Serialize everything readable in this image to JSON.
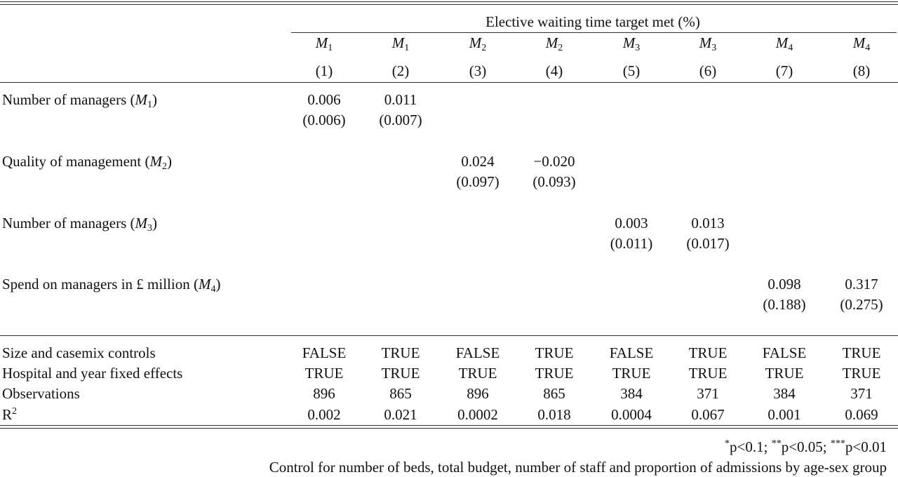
{
  "header": {
    "title": "Elective waiting time target met (%)",
    "models": [
      {
        "letter": "M",
        "sub": "1"
      },
      {
        "letter": "M",
        "sub": "1"
      },
      {
        "letter": "M",
        "sub": "2"
      },
      {
        "letter": "M",
        "sub": "2"
      },
      {
        "letter": "M",
        "sub": "3"
      },
      {
        "letter": "M",
        "sub": "3"
      },
      {
        "letter": "M",
        "sub": "4"
      },
      {
        "letter": "M",
        "sub": "4"
      }
    ],
    "numbers": [
      "(1)",
      "(2)",
      "(3)",
      "(4)",
      "(5)",
      "(6)",
      "(7)",
      "(8)"
    ]
  },
  "coefficients": [
    {
      "label": {
        "before": "Number of managers (",
        "var": "M",
        "sub": "1",
        "after": ")"
      },
      "cells": [
        {
          "estimate": "0.006",
          "se": "(0.006)"
        },
        {
          "estimate": "0.011",
          "se": "(0.007)"
        },
        null,
        null,
        null,
        null,
        null,
        null
      ]
    },
    {
      "label": {
        "before": "Quality of management (",
        "var": "M",
        "sub": "2",
        "after": ")"
      },
      "cells": [
        null,
        null,
        {
          "estimate": "0.024",
          "se": "(0.097)"
        },
        {
          "estimate": "−0.020",
          "se": "(0.093)"
        },
        null,
        null,
        null,
        null
      ]
    },
    {
      "label": {
        "before": "Number of managers (",
        "var": "M",
        "sub": "3",
        "after": ")"
      },
      "cells": [
        null,
        null,
        null,
        null,
        {
          "estimate": "0.003",
          "se": "(0.011)"
        },
        {
          "estimate": "0.013",
          "se": "(0.017)"
        },
        null,
        null
      ]
    },
    {
      "label": {
        "before": "Spend on managers in £ million (",
        "var": "M",
        "sub": "4",
        "after": ")"
      },
      "cells": [
        null,
        null,
        null,
        null,
        null,
        null,
        {
          "estimate": "0.098",
          "se": "(0.188)"
        },
        {
          "estimate": "0.317",
          "se": "(0.275)"
        }
      ]
    }
  ],
  "stats": [
    {
      "label": {
        "base": "Size and casemix controls"
      },
      "values": [
        "FALSE",
        "TRUE",
        "FALSE",
        "TRUE",
        "FALSE",
        "TRUE",
        "FALSE",
        "TRUE"
      ]
    },
    {
      "label": {
        "base": "Hospital and year fixed effects"
      },
      "values": [
        "TRUE",
        "TRUE",
        "TRUE",
        "TRUE",
        "TRUE",
        "TRUE",
        "TRUE",
        "TRUE"
      ]
    },
    {
      "label": {
        "base": "Observations"
      },
      "values": [
        "896",
        "865",
        "896",
        "865",
        "384",
        "371",
        "384",
        "371"
      ]
    },
    {
      "label": {
        "base": "R",
        "sup": "2"
      },
      "values": [
        "0.002",
        "0.021",
        "0.0002",
        "0.018",
        "0.0004",
        "0.067",
        "0.001",
        "0.069"
      ]
    }
  ],
  "notes": {
    "significance": [
      {
        "stars": "*",
        "text": "p<0.1;"
      },
      {
        "stars": "**",
        "text": "p<0.05;"
      },
      {
        "stars": "***",
        "text": "p<0.01"
      }
    ],
    "controls": "Control for number of beds, total budget, number of staff and proportion of admissions by age-sex group"
  }
}
